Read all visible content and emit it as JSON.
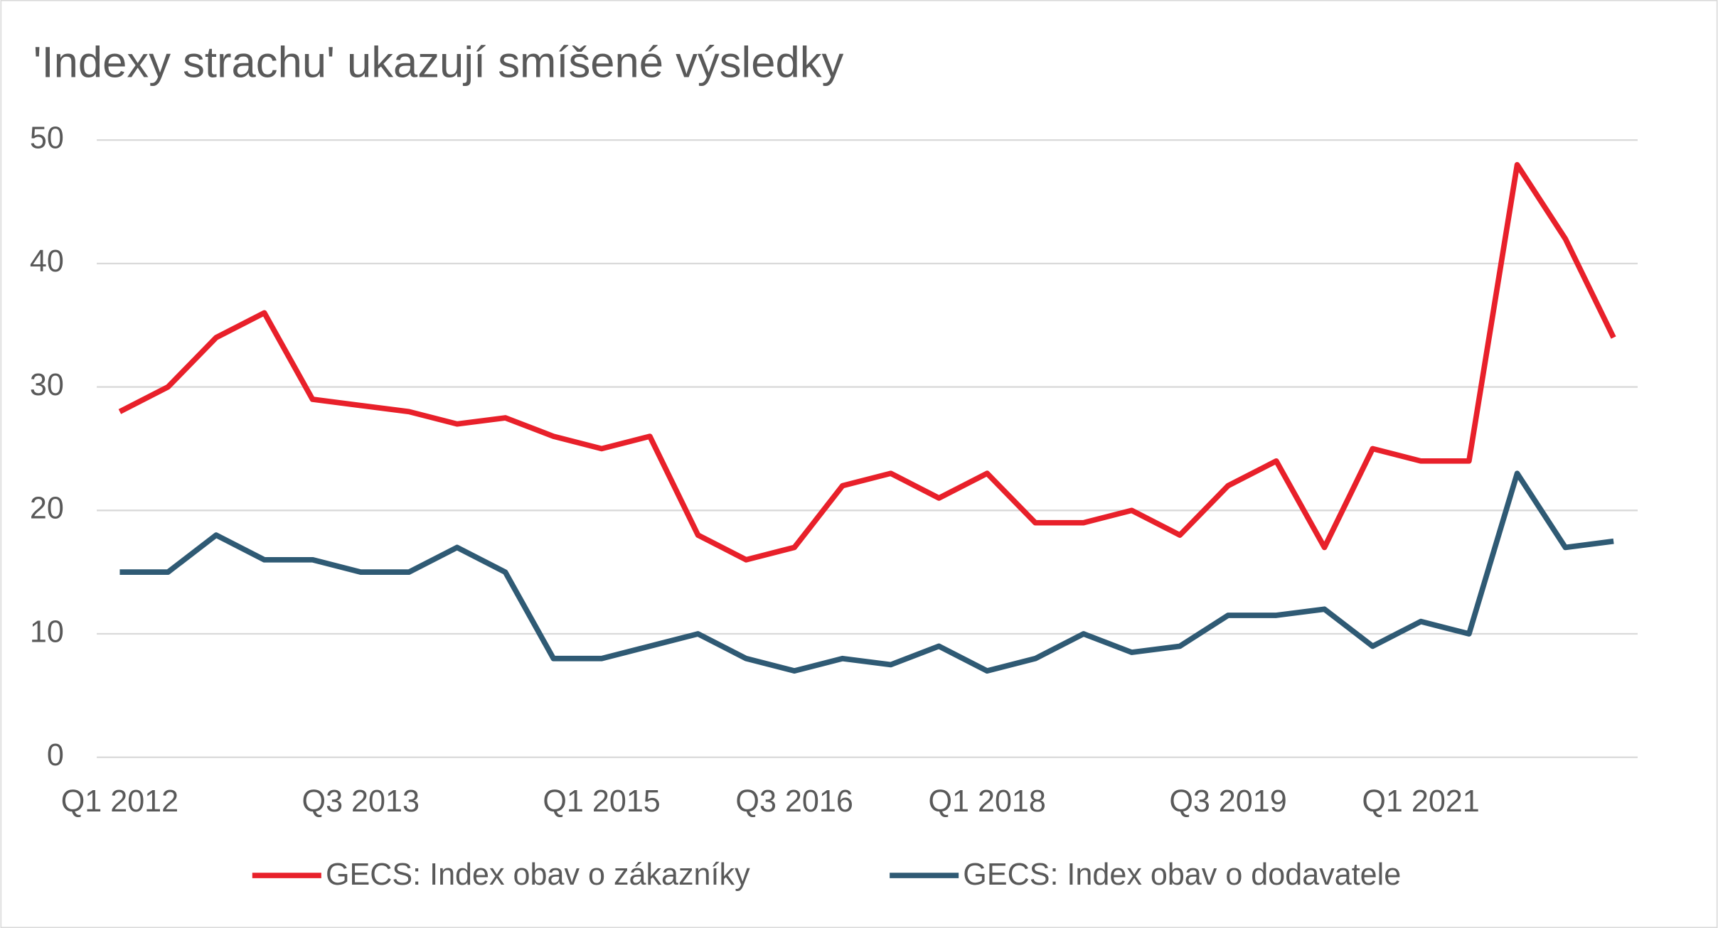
{
  "chart_data": {
    "type": "line",
    "title": "'Indexy strachu' ukazují smíšené výsledky",
    "categories": [
      "Q1 2012",
      null,
      null,
      null,
      null,
      "Q3 2013",
      null,
      null,
      null,
      null,
      "Q1 2015",
      null,
      null,
      null,
      "Q3 2016",
      null,
      null,
      null,
      "Q1 2018",
      null,
      null,
      null,
      null,
      "Q3 2019",
      null,
      null,
      null,
      "Q1 2021",
      null,
      null,
      null,
      null
    ],
    "series": [
      {
        "name": "GECS: Index obav o zákazníky",
        "color": "#e8202a",
        "values": [
          28,
          30,
          34,
          36,
          29,
          28.5,
          28,
          27,
          27.5,
          26,
          25,
          26,
          18,
          16,
          17,
          22,
          23,
          21,
          23,
          19,
          19,
          20,
          18,
          22,
          24,
          17,
          25,
          24,
          24,
          48,
          42,
          34
        ]
      },
      {
        "name": "GECS: Index obav o dodavatele",
        "color": "#2f5a74",
        "values": [
          15,
          15,
          18,
          16,
          16,
          15,
          15,
          17,
          15,
          8,
          8,
          9,
          10,
          8,
          7,
          8,
          7.5,
          9,
          7,
          8,
          10,
          8.5,
          9,
          11.5,
          11.5,
          12,
          9,
          11,
          10,
          23,
          17,
          17.5
        ]
      }
    ],
    "ylim": [
      0,
      50
    ],
    "yticks": [
      0,
      10,
      20,
      30,
      40,
      50
    ],
    "grid": true,
    "legend": "bottom"
  }
}
